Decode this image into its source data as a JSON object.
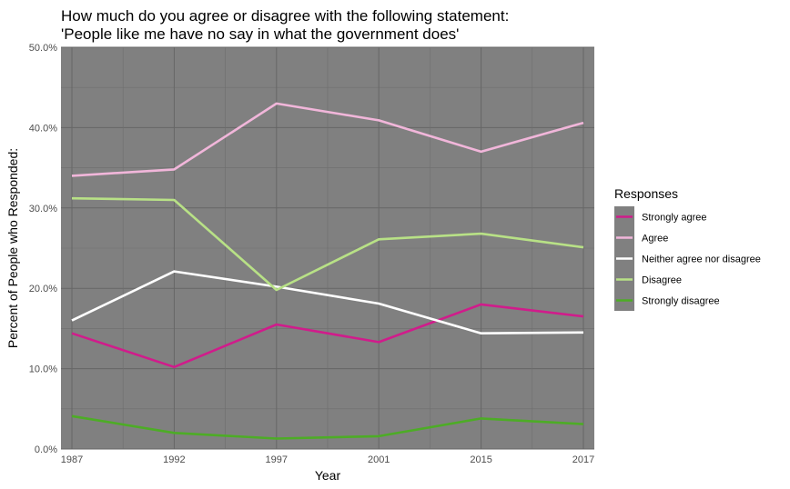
{
  "chart_data": {
    "type": "line",
    "title_line1": "How much do you agree or disagree with the following statement:",
    "title_line2": "'People like me have no say in what the government does'",
    "xlabel": "Year",
    "ylabel": "Percent of People who Responded:",
    "x": [
      1987,
      1992,
      1997,
      2001,
      2015,
      2017
    ],
    "x_tick_labels": [
      "1987",
      "1992",
      "1997",
      "2001",
      "2015",
      "2017"
    ],
    "ylim": [
      0,
      50
    ],
    "y_ticks": [
      0,
      10,
      20,
      30,
      40,
      50
    ],
    "y_tick_labels": [
      "0.0%",
      "10.0%",
      "20.0%",
      "30.0%",
      "40.0%",
      "50.0%"
    ],
    "grid": true,
    "panel_background": "#808080",
    "legend_title": "Responses",
    "legend_position": "right",
    "series": [
      {
        "name": "Strongly agree",
        "color": "#d01c8b",
        "values": [
          14.4,
          10.2,
          15.5,
          13.3,
          18.0,
          16.5
        ]
      },
      {
        "name": "Agree",
        "color": "#f1b6da",
        "values": [
          34.0,
          34.8,
          43.0,
          40.9,
          37.0,
          40.6
        ]
      },
      {
        "name": "Neither agree nor disagree",
        "color": "#ffffff",
        "values": [
          16.0,
          22.1,
          20.2,
          18.1,
          14.4,
          14.5
        ]
      },
      {
        "name": "Disagree",
        "color": "#b8e186",
        "values": [
          31.2,
          31.0,
          19.8,
          26.1,
          26.8,
          25.1
        ]
      },
      {
        "name": "Strongly disagree",
        "color": "#4dac26",
        "values": [
          4.1,
          2.0,
          1.3,
          1.6,
          3.8,
          3.1
        ]
      }
    ]
  }
}
